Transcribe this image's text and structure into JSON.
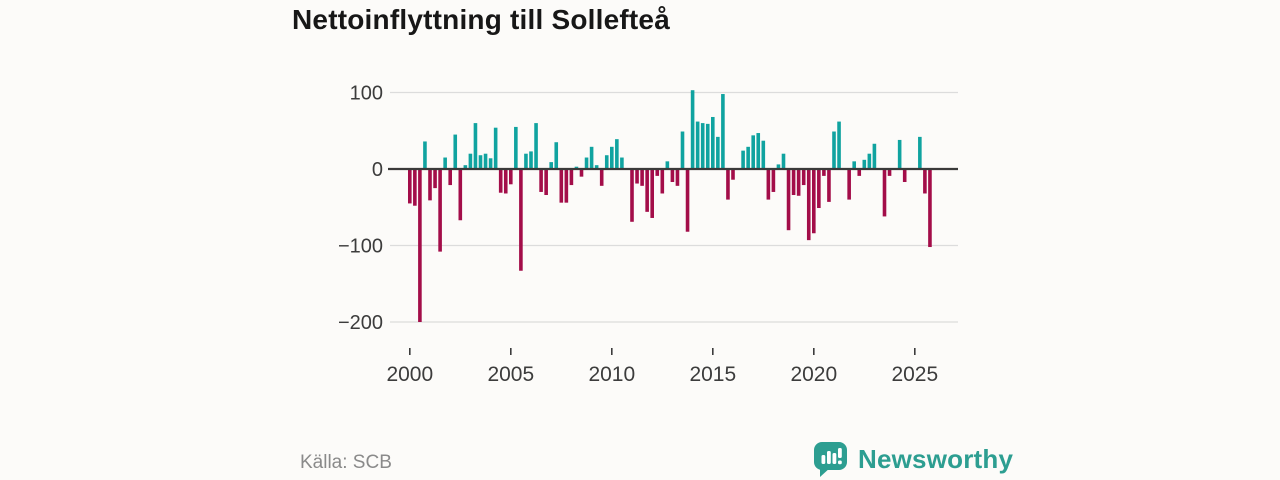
{
  "title": "Nettoinflyttning till Sollefteå",
  "source": "Källa: SCB",
  "brand": {
    "name": "Newsworthy",
    "color": "#2d9e91"
  },
  "chart_data": {
    "type": "bar",
    "title": "Nettoinflyttning till Sollefteå",
    "period": "quarterly",
    "start": "2000 Q1",
    "end": "2025 Q4",
    "values": [
      -45,
      -48,
      -200,
      36,
      -41,
      -25,
      -108,
      15,
      -21,
      45,
      -67,
      5,
      20,
      60,
      18,
      20,
      14,
      54,
      -31,
      -32,
      -20,
      55,
      -133,
      20,
      23,
      60,
      -30,
      -34,
      9,
      35,
      -44,
      -44,
      -21,
      3,
      -10,
      15,
      29,
      5,
      -22,
      18,
      29,
      39,
      15,
      0,
      -69,
      -19,
      -22,
      -56,
      -64,
      -9,
      -32,
      10,
      -17,
      -22,
      49,
      -82,
      103,
      62,
      60,
      59,
      68,
      42,
      98,
      -40,
      -14,
      0,
      24,
      29,
      44,
      47,
      37,
      -40,
      -30,
      6,
      20,
      -80,
      -34,
      -35,
      -21,
      -93,
      -84,
      -51,
      -9,
      -43,
      49,
      62,
      0,
      -40,
      10,
      -9,
      12,
      20,
      33,
      0,
      -62,
      -9,
      0,
      38,
      -17,
      0,
      0,
      42,
      -32,
      -102
    ],
    "x_tick_labels": [
      "2000",
      "2005",
      "2010",
      "2015",
      "2020",
      "2025"
    ],
    "x_tick_years": [
      2000,
      2005,
      2010,
      2015,
      2020,
      2025
    ],
    "y_tick_labels": [
      "100",
      "0",
      "−100",
      "−200"
    ],
    "y_tick_values": [
      100,
      0,
      -100,
      -200
    ],
    "ylim": [
      -215,
      115
    ],
    "grid": "horizontal",
    "legend": "none",
    "colors": {
      "positive": "#10a3a0",
      "negative": "#a30d49",
      "zero_line": "#3a3a3a",
      "grid_line": "#dcdcdc"
    }
  }
}
